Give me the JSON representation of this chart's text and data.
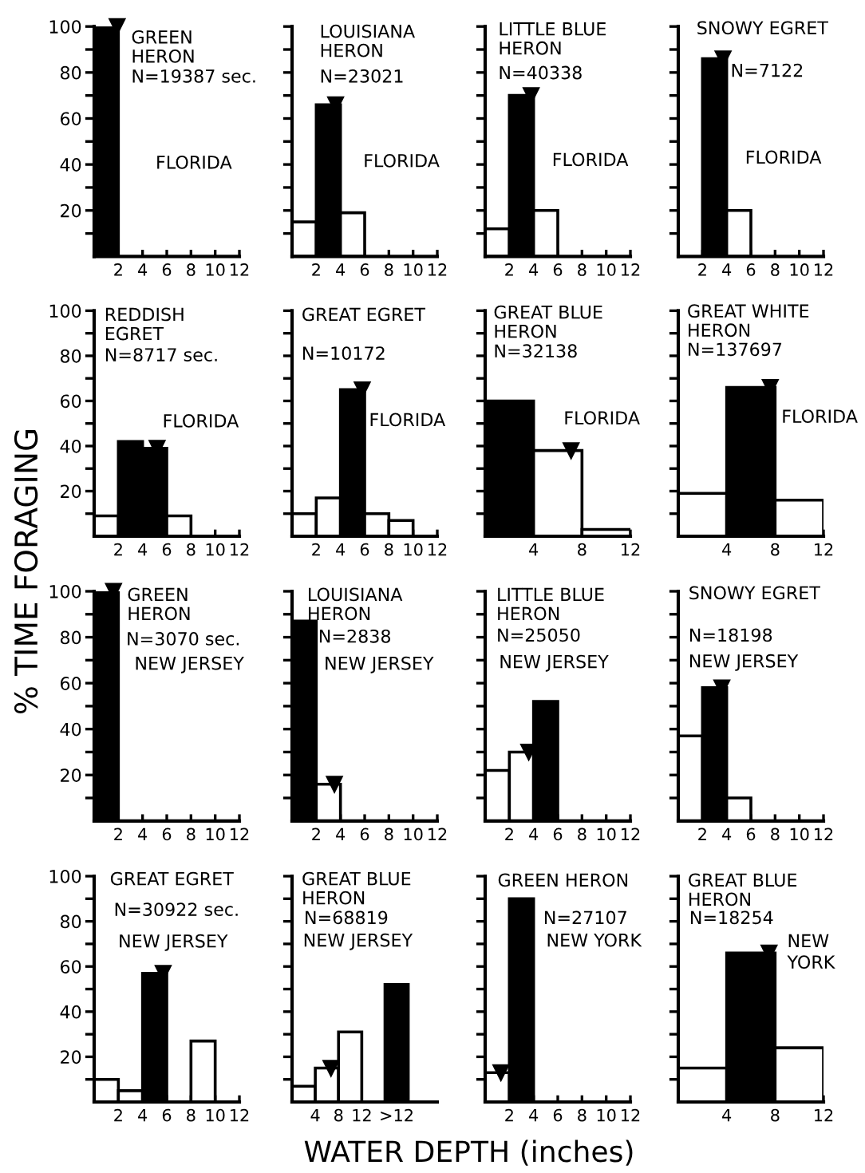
{
  "chart_data": [
    {
      "type": "histogram",
      "title": "GREEN\nHERON",
      "subtitle": "N=19387 sec.",
      "annotations": [
        "FLORIDA"
      ],
      "bins": [
        0,
        2
      ],
      "values": [
        100
      ],
      "colors": [
        "#000000"
      ],
      "series": [
        {
          "type": "scatter",
          "x": [
            1.9
          ],
          "values": [
            100
          ],
          "color": "#000000"
        }
      ],
      "marker": "triangle",
      "xlim": [
        0,
        12
      ],
      "xticks": [
        2,
        4,
        6,
        8,
        10,
        12
      ],
      "ylim": [
        0,
        100
      ],
      "yticks": [
        {
          "value": 10,
          "label": null
        },
        20,
        {
          "value": 30,
          "label": null
        },
        40,
        {
          "value": 50,
          "label": null
        },
        60,
        {
          "value": 70,
          "label": null
        },
        80,
        {
          "value": 90,
          "label": null
        },
        100
      ]
    },
    {
      "type": "histogram",
      "title": "LOUISIANA\nHERON",
      "subtitle": "N=23021",
      "annotations": [
        "FLORIDA"
      ],
      "bins": [
        0,
        2,
        4,
        6
      ],
      "values": [
        15,
        66,
        19
      ],
      "colors": [
        "#ffffff",
        "#000000",
        "#ffffff"
      ],
      "series": [
        {
          "type": "scatter",
          "x": [
            3.6
          ],
          "values": [
            66
          ],
          "color": "#000000"
        }
      ],
      "marker": "triangle",
      "xlim": [
        0,
        12
      ],
      "xticks": [
        2,
        4,
        6,
        8,
        10,
        12
      ],
      "ylim": [
        0,
        100
      ],
      "yticks": [
        {
          "value": 10,
          "label": null
        },
        20,
        {
          "value": 30,
          "label": null
        },
        40,
        {
          "value": 50,
          "label": null
        },
        60,
        {
          "value": 70,
          "label": null
        },
        80,
        {
          "value": 90,
          "label": null
        },
        100
      ],
      "tick_labels": "x"
    },
    {
      "type": "histogram",
      "title": "LITTLE BLUE\nHERON",
      "subtitle": "N=40338",
      "annotations": [
        "FLORIDA"
      ],
      "bins": [
        0,
        2,
        4,
        6
      ],
      "values": [
        12,
        70,
        20
      ],
      "colors": [
        "#ffffff",
        "#000000",
        "#ffffff"
      ],
      "series": [
        {
          "type": "scatter",
          "x": [
            3.8
          ],
          "values": [
            70
          ],
          "color": "#000000"
        }
      ],
      "marker": "triangle",
      "xlim": [
        0,
        12
      ],
      "xticks": [
        2,
        4,
        6,
        8,
        10,
        12
      ],
      "ylim": [
        0,
        100
      ],
      "yticks": [
        {
          "value": 10,
          "label": null
        },
        20,
        {
          "value": 30,
          "label": null
        },
        40,
        {
          "value": 50,
          "label": null
        },
        60,
        {
          "value": 70,
          "label": null
        },
        80,
        {
          "value": 90,
          "label": null
        },
        100
      ],
      "tick_labels": "x"
    },
    {
      "type": "histogram",
      "title": "SNOWY EGRET",
      "subtitle": "N=7122",
      "annotations": [
        "FLORIDA"
      ],
      "bins": [
        2,
        4,
        6
      ],
      "values": [
        86,
        20
      ],
      "colors": [
        "#000000",
        "#ffffff"
      ],
      "series": [
        {
          "type": "scatter",
          "x": [
            3.7
          ],
          "values": [
            86
          ],
          "color": "#000000"
        }
      ],
      "marker": "triangle",
      "xlim": [
        0,
        12
      ],
      "xticks": [
        2,
        4,
        6,
        8,
        10,
        12
      ],
      "ylim": [
        0,
        100
      ],
      "yticks": [
        {
          "value": 10,
          "label": null
        },
        20,
        {
          "value": 30,
          "label": null
        },
        40,
        {
          "value": 50,
          "label": null
        },
        60,
        {
          "value": 70,
          "label": null
        },
        80,
        {
          "value": 90,
          "label": null
        },
        100
      ],
      "tick_labels": "x"
    },
    {
      "type": "histogram",
      "title": "REDDISH\nEGRET",
      "subtitle": "N=8717 sec.",
      "annotations": [
        "FLORIDA"
      ],
      "bins": [
        0,
        2,
        4,
        6,
        8
      ],
      "values": [
        9,
        42,
        39,
        9
      ],
      "colors": [
        "#ffffff",
        "#000000",
        "#000000",
        "#ffffff"
      ],
      "series": [
        {
          "type": "scatter",
          "x": [
            5.2
          ],
          "values": [
            39
          ],
          "color": "#000000"
        }
      ],
      "marker": "triangle",
      "xlim": [
        0,
        12
      ],
      "xticks": [
        2,
        4,
        6,
        8,
        10,
        12
      ],
      "ylim": [
        0,
        100
      ],
      "yticks": [
        {
          "value": 10,
          "label": null
        },
        20,
        {
          "value": 30,
          "label": null
        },
        40,
        {
          "value": 50,
          "label": null
        },
        60,
        {
          "value": 70,
          "label": null
        },
        80,
        {
          "value": 90,
          "label": null
        },
        100
      ]
    },
    {
      "type": "histogram",
      "title": "GREAT EGRET",
      "subtitle": "N=10172",
      "annotations": [
        "FLORIDA"
      ],
      "bins": [
        0,
        2,
        4,
        6,
        8,
        10
      ],
      "values": [
        10,
        17,
        65,
        10,
        7
      ],
      "colors": [
        "#ffffff",
        "#ffffff",
        "#000000",
        "#ffffff",
        "#ffffff"
      ],
      "series": [
        {
          "type": "scatter",
          "x": [
            5.8
          ],
          "values": [
            65
          ],
          "color": "#000000"
        }
      ],
      "marker": "triangle",
      "xlim": [
        0,
        12
      ],
      "xticks": [
        2,
        4,
        6,
        8,
        10,
        12
      ],
      "ylim": [
        0,
        100
      ],
      "yticks": [
        {
          "value": 10,
          "label": null
        },
        20,
        {
          "value": 30,
          "label": null
        },
        40,
        {
          "value": 50,
          "label": null
        },
        60,
        {
          "value": 70,
          "label": null
        },
        80,
        {
          "value": 90,
          "label": null
        },
        100
      ],
      "tick_labels": "x"
    },
    {
      "type": "histogram",
      "title": "GREAT BLUE\nHERON",
      "subtitle": "N=32138",
      "annotations": [
        "FLORIDA"
      ],
      "bins": [
        0,
        4,
        8,
        12
      ],
      "values": [
        60,
        38,
        3
      ],
      "colors": [
        "#000000",
        "#ffffff",
        "#ffffff"
      ],
      "series": [
        {
          "type": "scatter",
          "x": [
            7.1
          ],
          "values": [
            38
          ],
          "color": "#000000"
        }
      ],
      "marker": "triangle",
      "xlim": [
        0,
        12
      ],
      "xticks": [
        4,
        8,
        12
      ],
      "ylim": [
        0,
        100
      ],
      "yticks": [
        {
          "value": 10,
          "label": null
        },
        20,
        {
          "value": 30,
          "label": null
        },
        40,
        {
          "value": 50,
          "label": null
        },
        60,
        {
          "value": 70,
          "label": null
        },
        80,
        {
          "value": 90,
          "label": null
        },
        100
      ],
      "tick_labels": "x"
    },
    {
      "type": "histogram",
      "title": "GREAT WHITE\nHERON",
      "subtitle": "N=137697",
      "annotations": [
        "FLORIDA"
      ],
      "bins": [
        0,
        4,
        8,
        12
      ],
      "values": [
        19,
        66,
        16
      ],
      "colors": [
        "#ffffff",
        "#000000",
        "#ffffff"
      ],
      "series": [
        {
          "type": "scatter",
          "x": [
            7.6
          ],
          "values": [
            66
          ],
          "color": "#000000"
        }
      ],
      "marker": "triangle",
      "xlim": [
        0,
        12
      ],
      "xticks": [
        4,
        8,
        12
      ],
      "ylim": [
        0,
        100
      ],
      "yticks": [
        {
          "value": 10,
          "label": null
        },
        20,
        {
          "value": 30,
          "label": null
        },
        40,
        {
          "value": 50,
          "label": null
        },
        60,
        {
          "value": 70,
          "label": null
        },
        80,
        {
          "value": 90,
          "label": null
        },
        100
      ],
      "tick_labels": "x"
    },
    {
      "type": "histogram",
      "title": "GREEN\nHERON",
      "subtitle": "N=3070 sec.",
      "annotations": [
        "NEW JERSEY"
      ],
      "ylabel": "% TIME FORAGING",
      "bins": [
        0,
        2
      ],
      "values": [
        100
      ],
      "colors": [
        "#000000"
      ],
      "series": [
        {
          "type": "scatter",
          "x": [
            1.6
          ],
          "values": [
            100
          ],
          "color": "#000000"
        }
      ],
      "marker": "triangle",
      "xlim": [
        0,
        12
      ],
      "xticks": [
        2,
        4,
        6,
        8,
        10,
        12
      ],
      "ylim": [
        0,
        100
      ],
      "yticks": [
        {
          "value": 10,
          "label": null
        },
        20,
        {
          "value": 30,
          "label": null
        },
        40,
        {
          "value": 50,
          "label": null
        },
        60,
        {
          "value": 70,
          "label": null
        },
        80,
        {
          "value": 90,
          "label": null
        },
        100
      ]
    },
    {
      "type": "histogram",
      "title": "LOUISIANA\nHERON",
      "subtitle": "N=2838",
      "annotations": [
        "NEW JERSEY"
      ],
      "bins": [
        0,
        2,
        4
      ],
      "values": [
        87,
        16
      ],
      "colors": [
        "#000000",
        "#ffffff"
      ],
      "series": [
        {
          "type": "scatter",
          "x": [
            3.5
          ],
          "values": [
            16
          ],
          "color": "#000000"
        }
      ],
      "marker": "triangle",
      "xlim": [
        0,
        12
      ],
      "xticks": [
        2,
        4,
        6,
        8,
        10,
        12
      ],
      "ylim": [
        0,
        100
      ],
      "yticks": [
        {
          "value": 10,
          "label": null
        },
        20,
        {
          "value": 30,
          "label": null
        },
        40,
        {
          "value": 50,
          "label": null
        },
        60,
        {
          "value": 70,
          "label": null
        },
        80,
        {
          "value": 90,
          "label": null
        },
        100
      ],
      "tick_labels": "x"
    },
    {
      "type": "histogram",
      "title": "LITTLE BLUE\nHERON",
      "subtitle": "N=25050",
      "annotations": [
        "NEW JERSEY"
      ],
      "bins": [
        0,
        2,
        4,
        6
      ],
      "values": [
        22,
        30,
        52
      ],
      "colors": [
        "#ffffff",
        "#ffffff",
        "#000000"
      ],
      "series": [
        {
          "type": "scatter",
          "x": [
            3.6
          ],
          "values": [
            30
          ],
          "color": "#000000"
        }
      ],
      "marker": "triangle",
      "xlim": [
        0,
        12
      ],
      "xticks": [
        2,
        4,
        6,
        8,
        10,
        12
      ],
      "ylim": [
        0,
        100
      ],
      "yticks": [
        {
          "value": 10,
          "label": null
        },
        20,
        {
          "value": 30,
          "label": null
        },
        40,
        {
          "value": 50,
          "label": null
        },
        60,
        {
          "value": 70,
          "label": null
        },
        80,
        {
          "value": 90,
          "label": null
        },
        100
      ],
      "tick_labels": "x"
    },
    {
      "type": "histogram",
      "title": "SNOWY EGRET",
      "subtitle": "N=18198",
      "annotations": [
        "NEW JERSEY"
      ],
      "bins": [
        0,
        2,
        4,
        6
      ],
      "values": [
        37,
        58,
        10
      ],
      "colors": [
        "#ffffff",
        "#000000",
        "#ffffff"
      ],
      "series": [
        {
          "type": "scatter",
          "x": [
            3.6
          ],
          "values": [
            58
          ],
          "color": "#000000"
        }
      ],
      "marker": "triangle",
      "xlim": [
        0,
        12
      ],
      "xticks": [
        2,
        4,
        6,
        8,
        10,
        12
      ],
      "ylim": [
        0,
        100
      ],
      "yticks": [
        {
          "value": 10,
          "label": null
        },
        20,
        {
          "value": 30,
          "label": null
        },
        40,
        {
          "value": 50,
          "label": null
        },
        60,
        {
          "value": 70,
          "label": null
        },
        80,
        {
          "value": 90,
          "label": null
        },
        100
      ],
      "tick_labels": "x"
    },
    {
      "type": "histogram",
      "title": "GREAT EGRET",
      "subtitle": "N=30922 sec.",
      "annotations": [
        "NEW JERSEY"
      ],
      "bins": [
        0,
        2,
        4,
        6,
        8,
        10
      ],
      "values": [
        10,
        5,
        57,
        null,
        27
      ],
      "colors": [
        "#ffffff",
        "#ffffff",
        "#000000",
        null,
        "#ffffff"
      ],
      "series": [
        {
          "type": "scatter",
          "x": [
            5.7
          ],
          "values": [
            57
          ],
          "color": "#000000"
        }
      ],
      "marker": "triangle",
      "xlim": [
        0,
        12
      ],
      "xticks": [
        2,
        4,
        6,
        8,
        10,
        12
      ],
      "ylim": [
        0,
        100
      ],
      "yticks": [
        {
          "value": 10,
          "label": null
        },
        20,
        {
          "value": 30,
          "label": null
        },
        40,
        {
          "value": 50,
          "label": null
        },
        60,
        {
          "value": 70,
          "label": null
        },
        80,
        {
          "value": 90,
          "label": null
        },
        100
      ]
    },
    {
      "type": "histogram",
      "title": "GREAT BLUE\nHERON",
      "subtitle": "N=68819",
      "annotations": [
        "NEW JERSEY"
      ],
      "xlabel": "WATER DEPTH (inches)",
      "bins": [
        0,
        4,
        8,
        12,
        16,
        20
      ],
      "values": [
        7,
        15,
        31,
        null,
        52
      ],
      "colors": [
        "#ffffff",
        "#ffffff",
        "#ffffff",
        null,
        "#000000"
      ],
      "series": [
        {
          "type": "scatter",
          "x": [
            6.7
          ],
          "values": [
            15
          ],
          "color": "#000000"
        }
      ],
      "marker": "triangle",
      "xlim": [
        0,
        25
      ],
      "xticks": [
        4,
        8,
        12,
        {
          "value": 18,
          "label": ">12"
        }
      ],
      "ylim": [
        0,
        100
      ],
      "yticks": [
        {
          "value": 10,
          "label": null
        },
        20,
        {
          "value": 30,
          "label": null
        },
        40,
        {
          "value": 50,
          "label": null
        },
        60,
        {
          "value": 70,
          "label": null
        },
        80,
        {
          "value": 90,
          "label": null
        },
        100
      ],
      "tick_labels": "x"
    },
    {
      "type": "histogram",
      "title": "GREEN HERON",
      "subtitle": "N=27107",
      "annotations": [
        "NEW YORK"
      ],
      "bins": [
        0,
        2,
        4
      ],
      "values": [
        13,
        90
      ],
      "colors": [
        "#ffffff",
        "#000000"
      ],
      "series": [
        {
          "type": "scatter",
          "x": [
            1.3
          ],
          "values": [
            13
          ],
          "color": "#000000"
        }
      ],
      "marker": "triangle",
      "xlim": [
        0,
        12
      ],
      "xticks": [
        2,
        4,
        6,
        8,
        10,
        12
      ],
      "ylim": [
        0,
        100
      ],
      "yticks": [
        {
          "value": 10,
          "label": null
        },
        20,
        {
          "value": 30,
          "label": null
        },
        40,
        {
          "value": 50,
          "label": null
        },
        60,
        {
          "value": 70,
          "label": null
        },
        80,
        {
          "value": 90,
          "label": null
        },
        100
      ],
      "tick_labels": "x"
    },
    {
      "type": "histogram",
      "title": "GREAT BLUE\nHERON",
      "subtitle": "N=18254",
      "annotations": [
        "NEW\nYORK"
      ],
      "bins": [
        0,
        4,
        8,
        12
      ],
      "values": [
        15,
        66,
        24
      ],
      "colors": [
        "#ffffff",
        "#000000",
        "#ffffff"
      ],
      "series": [
        {
          "type": "scatter",
          "x": [
            7.5
          ],
          "values": [
            66
          ],
          "color": "#000000"
        }
      ],
      "marker": "triangle",
      "xlim": [
        0,
        12
      ],
      "xticks": [
        4,
        8,
        12
      ],
      "ylim": [
        0,
        100
      ],
      "yticks": [
        {
          "value": 10,
          "label": null
        },
        20,
        {
          "value": 30,
          "label": null
        },
        40,
        {
          "value": 50,
          "label": null
        },
        60,
        {
          "value": 70,
          "label": null
        },
        80,
        {
          "value": 90,
          "label": null
        },
        100
      ],
      "tick_labels": "x"
    }
  ]
}
